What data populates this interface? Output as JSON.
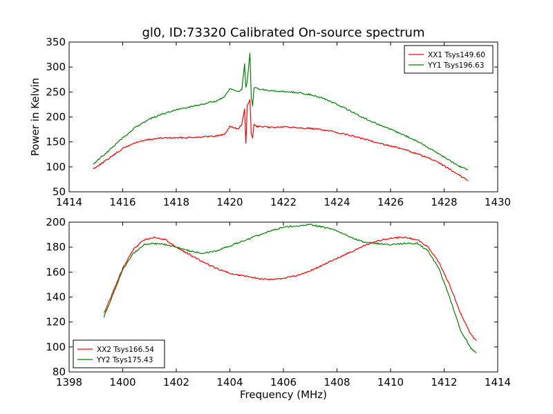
{
  "figure": {
    "title": "gl0, ID:73320 Calibrated On-source spectrum",
    "xlabel": "Frequency (MHz)"
  },
  "chart_data": [
    {
      "type": "line",
      "title": "gl0, ID:73320 Calibrated On-source spectrum",
      "xlabel": "",
      "ylabel": "Power in Kelvin",
      "xlim": [
        1414,
        1430
      ],
      "ylim": [
        50,
        350
      ],
      "xticks": [
        1414,
        1416,
        1418,
        1420,
        1422,
        1424,
        1426,
        1428,
        1430
      ],
      "yticks": [
        50,
        100,
        150,
        200,
        250,
        300,
        350
      ],
      "legend_position": "top-right",
      "grid": false,
      "series": [
        {
          "name": "XX1 Tsys149.60",
          "color": "#ff0000",
          "x": [
            1414.9,
            1415.3,
            1415.7,
            1416.0,
            1416.5,
            1417.0,
            1417.5,
            1418.0,
            1418.5,
            1419.0,
            1419.5,
            1419.8,
            1420.0,
            1420.3,
            1420.45,
            1420.55,
            1420.6,
            1420.65,
            1420.75,
            1420.8,
            1420.85,
            1420.9,
            1421.0,
            1421.5,
            1422.0,
            1422.5,
            1423.0,
            1423.5,
            1424.0,
            1424.5,
            1425.0,
            1425.5,
            1426.0,
            1426.5,
            1427.0,
            1427.5,
            1428.0,
            1428.5,
            1428.9
          ],
          "values": [
            96,
            110,
            125,
            137,
            149,
            155,
            158,
            158,
            159,
            160,
            162,
            165,
            181,
            176,
            185,
            215,
            148,
            222,
            235,
            165,
            158,
            185,
            181,
            179,
            180,
            179,
            177,
            174,
            169,
            163,
            156,
            149,
            142,
            135,
            126,
            116,
            102,
            86,
            72
          ]
        },
        {
          "name": "YY1 Tsys196.63",
          "color": "#008000",
          "x": [
            1414.9,
            1415.3,
            1415.7,
            1416.0,
            1416.5,
            1417.0,
            1417.5,
            1418.0,
            1418.5,
            1419.0,
            1419.5,
            1419.8,
            1420.0,
            1420.3,
            1420.45,
            1420.55,
            1420.6,
            1420.65,
            1420.75,
            1420.8,
            1420.85,
            1420.9,
            1421.0,
            1421.5,
            1422.0,
            1422.5,
            1423.0,
            1423.5,
            1424.0,
            1424.5,
            1425.0,
            1425.5,
            1426.0,
            1426.5,
            1427.0,
            1427.5,
            1428.0,
            1428.5,
            1428.9
          ],
          "values": [
            106,
            124,
            143,
            158,
            180,
            196,
            206,
            214,
            220,
            226,
            232,
            240,
            256,
            251,
            255,
            307,
            258,
            270,
            328,
            240,
            222,
            258,
            257,
            252,
            251,
            249,
            245,
            237,
            225,
            212,
            198,
            186,
            175,
            164,
            151,
            136,
            120,
            103,
            94
          ]
        }
      ]
    },
    {
      "type": "line",
      "title": "",
      "xlabel": "Frequency (MHz)",
      "ylabel": "",
      "xlim": [
        1398,
        1414
      ],
      "ylim": [
        80,
        200
      ],
      "xticks": [
        1398,
        1400,
        1402,
        1404,
        1406,
        1408,
        1410,
        1412,
        1414
      ],
      "yticks": [
        80,
        100,
        120,
        140,
        160,
        180,
        200
      ],
      "legend_position": "bottom-left",
      "grid": false,
      "series": [
        {
          "name": "XX2 Tsys166.54",
          "color": "#ff0000",
          "x": [
            1399.3,
            1399.6,
            1400.0,
            1400.4,
            1400.8,
            1401.2,
            1401.6,
            1402.0,
            1402.5,
            1403.0,
            1403.5,
            1404.0,
            1404.5,
            1405.0,
            1405.5,
            1406.0,
            1406.5,
            1407.0,
            1407.5,
            1408.0,
            1408.5,
            1409.0,
            1409.5,
            1410.0,
            1410.5,
            1411.0,
            1411.4,
            1411.8,
            1412.2,
            1412.6,
            1413.0,
            1413.2
          ],
          "values": [
            127,
            142,
            163,
            178,
            186,
            188,
            186,
            180,
            174,
            168,
            163,
            159,
            157,
            155,
            154,
            155,
            157,
            161,
            166,
            171,
            176,
            181,
            185,
            187,
            188,
            186,
            180,
            168,
            150,
            128,
            110,
            105
          ]
        },
        {
          "name": "YY2 Tsys175.43",
          "color": "#008000",
          "x": [
            1399.3,
            1399.6,
            1400.0,
            1400.4,
            1400.8,
            1401.2,
            1401.6,
            1402.0,
            1402.5,
            1403.0,
            1403.5,
            1404.0,
            1404.5,
            1405.0,
            1405.5,
            1406.0,
            1406.5,
            1407.0,
            1407.5,
            1408.0,
            1408.5,
            1409.0,
            1409.5,
            1410.0,
            1410.5,
            1411.0,
            1411.4,
            1411.8,
            1412.2,
            1412.6,
            1413.0,
            1413.2
          ],
          "values": [
            124,
            140,
            162,
            175,
            182,
            183,
            182,
            180,
            177,
            175,
            177,
            181,
            185,
            189,
            193,
            196,
            197,
            198,
            196,
            193,
            188,
            184,
            183,
            182,
            183,
            183,
            177,
            163,
            140,
            114,
            99,
            95
          ]
        }
      ]
    }
  ]
}
